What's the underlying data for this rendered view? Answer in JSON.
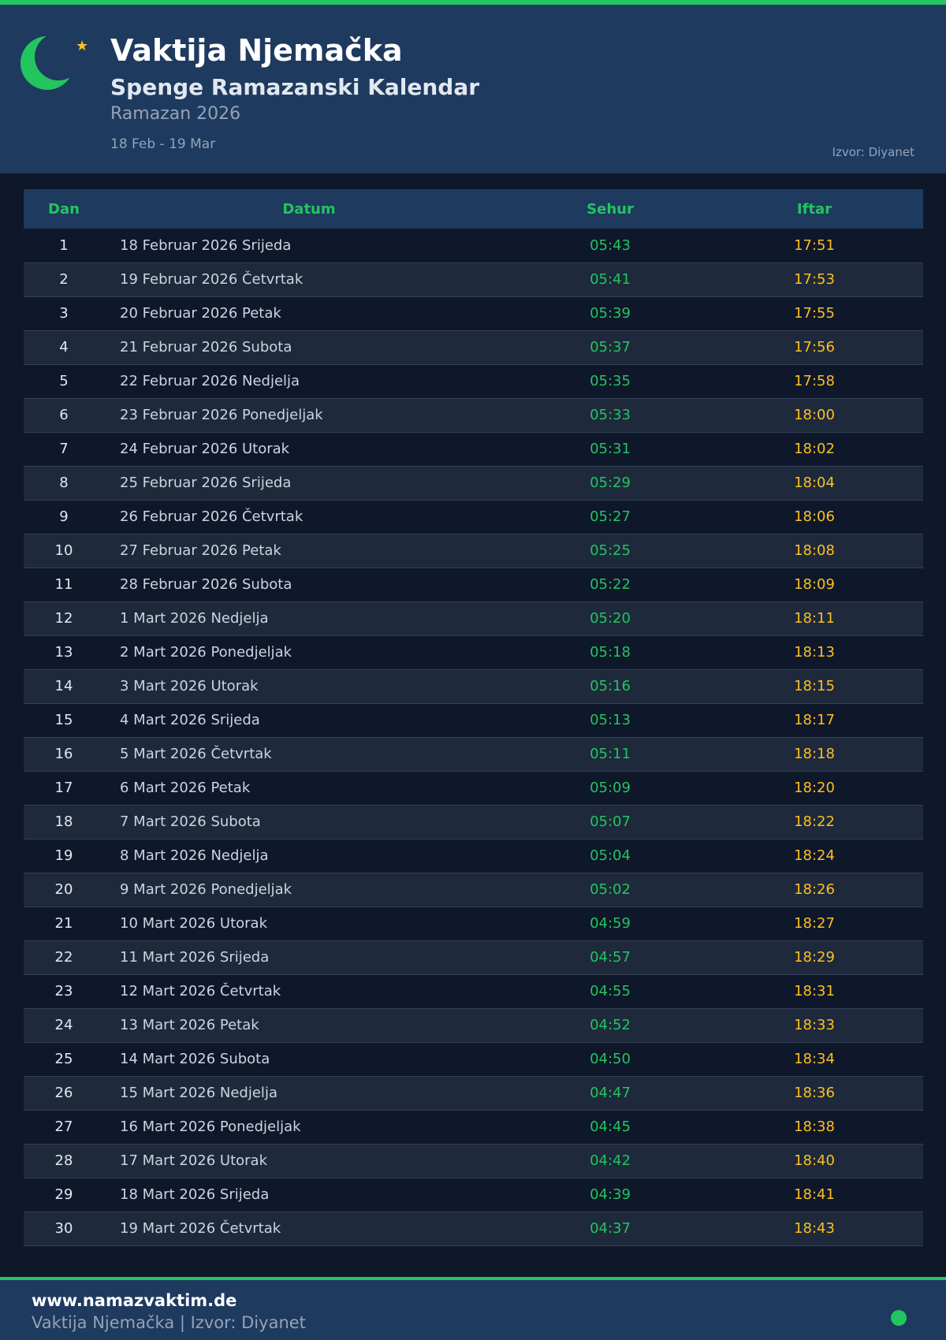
{
  "header": {
    "title": "Vaktija Njemačka",
    "subtitle": "Spenge Ramazanski Kalendar",
    "period": "Ramazan 2026",
    "range": "18 Feb - 19 Mar",
    "source": "Izvor: Diyanet",
    "icons": [
      "crescent-moon-icon",
      "star-icon"
    ]
  },
  "colors": {
    "accent": "#22c55e",
    "iftar": "#fbbf24",
    "header_bg": "#1e3a5f",
    "page_bg": "#0f172a"
  },
  "table": {
    "columns": [
      "Dan",
      "Datum",
      "Sehur",
      "Iftar"
    ],
    "rows": [
      [
        "1",
        "18 Februar 2026 Srijeda",
        "05:43",
        "17:51"
      ],
      [
        "2",
        "19 Februar 2026 Četvrtak",
        "05:41",
        "17:53"
      ],
      [
        "3",
        "20 Februar 2026 Petak",
        "05:39",
        "17:55"
      ],
      [
        "4",
        "21 Februar 2026 Subota",
        "05:37",
        "17:56"
      ],
      [
        "5",
        "22 Februar 2026 Nedjelja",
        "05:35",
        "17:58"
      ],
      [
        "6",
        "23 Februar 2026 Ponedjeljak",
        "05:33",
        "18:00"
      ],
      [
        "7",
        "24 Februar 2026 Utorak",
        "05:31",
        "18:02"
      ],
      [
        "8",
        "25 Februar 2026 Srijeda",
        "05:29",
        "18:04"
      ],
      [
        "9",
        "26 Februar 2026 Četvrtak",
        "05:27",
        "18:06"
      ],
      [
        "10",
        "27 Februar 2026 Petak",
        "05:25",
        "18:08"
      ],
      [
        "11",
        "28 Februar 2026 Subota",
        "05:22",
        "18:09"
      ],
      [
        "12",
        "1 Mart 2026 Nedjelja",
        "05:20",
        "18:11"
      ],
      [
        "13",
        "2 Mart 2026 Ponedjeljak",
        "05:18",
        "18:13"
      ],
      [
        "14",
        "3 Mart 2026 Utorak",
        "05:16",
        "18:15"
      ],
      [
        "15",
        "4 Mart 2026 Srijeda",
        "05:13",
        "18:17"
      ],
      [
        "16",
        "5 Mart 2026 Četvrtak",
        "05:11",
        "18:18"
      ],
      [
        "17",
        "6 Mart 2026 Petak",
        "05:09",
        "18:20"
      ],
      [
        "18",
        "7 Mart 2026 Subota",
        "05:07",
        "18:22"
      ],
      [
        "19",
        "8 Mart 2026 Nedjelja",
        "05:04",
        "18:24"
      ],
      [
        "20",
        "9 Mart 2026 Ponedjeljak",
        "05:02",
        "18:26"
      ],
      [
        "21",
        "10 Mart 2026 Utorak",
        "04:59",
        "18:27"
      ],
      [
        "22",
        "11 Mart 2026 Srijeda",
        "04:57",
        "18:29"
      ],
      [
        "23",
        "12 Mart 2026 Četvrtak",
        "04:55",
        "18:31"
      ],
      [
        "24",
        "13 Mart 2026 Petak",
        "04:52",
        "18:33"
      ],
      [
        "25",
        "14 Mart 2026 Subota",
        "04:50",
        "18:34"
      ],
      [
        "26",
        "15 Mart 2026 Nedjelja",
        "04:47",
        "18:36"
      ],
      [
        "27",
        "16 Mart 2026 Ponedjeljak",
        "04:45",
        "18:38"
      ],
      [
        "28",
        "17 Mart 2026 Utorak",
        "04:42",
        "18:40"
      ],
      [
        "29",
        "18 Mart 2026 Srijeda",
        "04:39",
        "18:41"
      ],
      [
        "30",
        "19 Mart 2026 Četvrtak",
        "04:37",
        "18:43"
      ]
    ]
  },
  "footer": {
    "website": "www.namazvaktim.de",
    "caption": "Vaktija Njemačka | Izvor: Diyanet"
  }
}
